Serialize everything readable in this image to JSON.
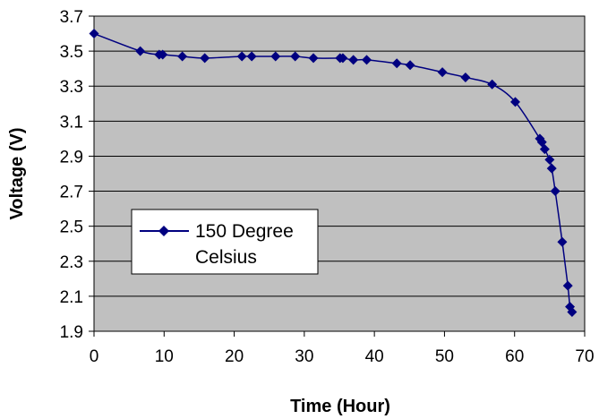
{
  "chart_data": {
    "type": "line",
    "xlabel": "Time (Hour)",
    "ylabel": "Voltage (V)",
    "xlim": [
      0,
      70
    ],
    "ylim": [
      1.9,
      3.7
    ],
    "xticks": [
      "0",
      "10",
      "20",
      "30",
      "40",
      "50",
      "60",
      "70"
    ],
    "yticks": [
      "1.9",
      "2.1",
      "2.3",
      "2.5",
      "2.7",
      "2.9",
      "3.1",
      "3.3",
      "3.5",
      "3.7"
    ],
    "grid": "horizontal",
    "legend_position": "center-left",
    "background_color": "#c0c0c0",
    "series": [
      {
        "name_lines": [
          "150 Degree",
          "Celsius"
        ],
        "color": "#000080",
        "marker": "diamond",
        "x": [
          0,
          6.6,
          9.3,
          9.8,
          12.6,
          15.8,
          21.1,
          22.5,
          25.9,
          28.7,
          31.3,
          35.1,
          35.5,
          37.0,
          38.9,
          43.2,
          45.1,
          49.7,
          53.0,
          56.8,
          60.1,
          63.6,
          63.9,
          64.3,
          65.0,
          65.3,
          65.8,
          66.8,
          67.6,
          67.9,
          68.2
        ],
        "y": [
          3.6,
          3.5,
          3.48,
          3.48,
          3.47,
          3.46,
          3.47,
          3.47,
          3.47,
          3.47,
          3.46,
          3.46,
          3.46,
          3.45,
          3.45,
          3.43,
          3.42,
          3.38,
          3.35,
          3.31,
          3.21,
          3.0,
          2.98,
          2.94,
          2.88,
          2.83,
          2.7,
          2.41,
          2.16,
          2.04,
          2.01
        ]
      }
    ]
  }
}
